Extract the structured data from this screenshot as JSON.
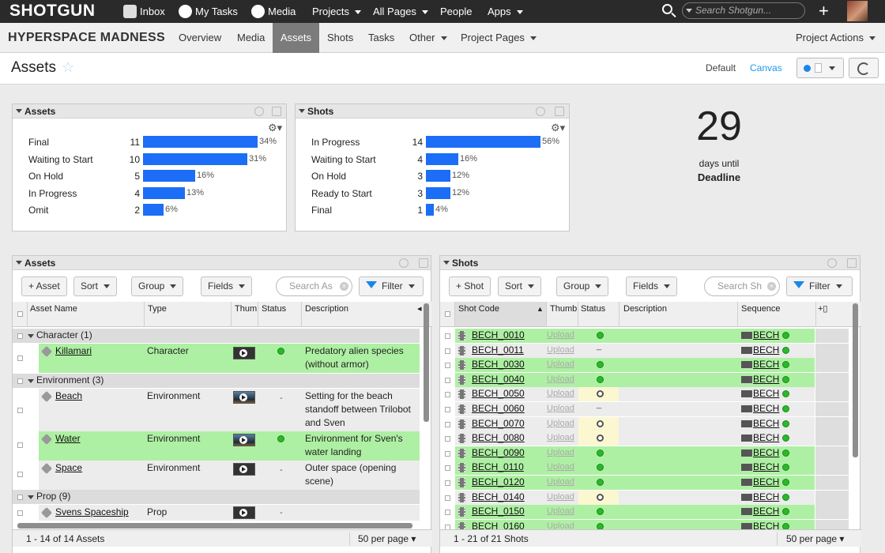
{
  "topnav": {
    "logo": "SHOTGUN",
    "items": [
      {
        "label": "Inbox",
        "icon": "inbox-icon"
      },
      {
        "label": "My Tasks",
        "icon": "check-icon"
      },
      {
        "label": "Media",
        "icon": "play-icon"
      },
      {
        "label": "Projects"
      },
      {
        "label": "All Pages"
      },
      {
        "label": "People"
      },
      {
        "label": "Apps"
      }
    ],
    "search_placeholder": "Search Shotgun..."
  },
  "projnav": {
    "title": "HYPERSPACE MADNESS",
    "tabs": [
      "Overview",
      "Media",
      "Assets",
      "Shots",
      "Tasks",
      "Other",
      "Project Pages"
    ],
    "active_tab": "Assets",
    "actions": "Project Actions"
  },
  "page": {
    "title": "Assets",
    "layout_default": "Default",
    "layout_canvas": "Canvas"
  },
  "assets_chart": {
    "title": "Assets",
    "chart_data": {
      "type": "bar",
      "categories": [
        "Final",
        "Waiting to Start",
        "On Hold",
        "In Progress",
        "Omit"
      ],
      "values": [
        11,
        10,
        5,
        4,
        2
      ],
      "percent_labels": [
        "34%",
        "31%",
        "16%",
        "13%",
        "6%"
      ]
    }
  },
  "shots_chart": {
    "title": "Shots",
    "chart_data": {
      "type": "bar",
      "categories": [
        "In Progress",
        "Waiting to Start",
        "On Hold",
        "Ready to Start",
        "Final"
      ],
      "values": [
        14,
        4,
        3,
        3,
        1
      ],
      "percent_labels": [
        "56%",
        "16%",
        "12%",
        "12%",
        "4%"
      ]
    }
  },
  "countdown": {
    "number": "29",
    "line1": "days until",
    "line2": "Deadline"
  },
  "assets_grid": {
    "title": "Assets",
    "add_label": "+ Asset",
    "sort_label": "Sort",
    "group_label": "Group",
    "fields_label": "Fields",
    "search_placeholder": "Search As",
    "filter_label": "Filter",
    "columns": [
      "Asset Name",
      "Type",
      "Thumb",
      "Status",
      "Description"
    ],
    "groups": [
      {
        "label": "Character (1)"
      },
      {
        "label": "Environment (3)"
      },
      {
        "label": "Prop (9)"
      }
    ],
    "rows": [
      {
        "name": "Killamari",
        "type": "Character",
        "desc1": "Predatory alien species",
        "desc2": "(without armor)",
        "desc3": ""
      },
      {
        "name": "Beach",
        "type": "Environment",
        "desc1": "Setting for the beach",
        "desc2": "standoff between Trilobot",
        "desc3": "and Sven"
      },
      {
        "name": "Water",
        "type": "Environment",
        "desc1": "Environment for Sven's",
        "desc2": "water landing",
        "desc3": ""
      },
      {
        "name": "Space",
        "type": "Environment",
        "desc1": "Outer space (opening",
        "desc2": "scene)",
        "desc3": ""
      },
      {
        "name": "Svens Spaceship",
        "type": "Prop",
        "desc1": "",
        "desc2": "",
        "desc3": ""
      }
    ],
    "status_dash": "-",
    "footer_count": "1 - 14 of 14 Assets",
    "per_page": "50 per page"
  },
  "shots_grid": {
    "title": "Shots",
    "add_label": "+ Shot",
    "sort_label": "Sort",
    "group_label": "Group",
    "fields_label": "Fields",
    "search_placeholder": "Search Sh",
    "filter_label": "Filter",
    "columns": [
      "Shot Code",
      "Thumb",
      "Status",
      "Description",
      "Sequence"
    ],
    "upload_label": "Upload",
    "sequence_label": "BECH",
    "rows": [
      {
        "code": "BECH_0010",
        "status": "green"
      },
      {
        "code": "BECH_0011",
        "status": "dash"
      },
      {
        "code": "BECH_0030",
        "status": "green"
      },
      {
        "code": "BECH_0040",
        "status": "green"
      },
      {
        "code": "BECH_0050",
        "status": "open"
      },
      {
        "code": "BECH_0060",
        "status": "dash"
      },
      {
        "code": "BECH_0070",
        "status": "open"
      },
      {
        "code": "BECH_0080",
        "status": "open"
      },
      {
        "code": "BECH_0090",
        "status": "green"
      },
      {
        "code": "BECH_0110",
        "status": "green"
      },
      {
        "code": "BECH_0120",
        "status": "green"
      },
      {
        "code": "BECH_0140",
        "status": "open"
      },
      {
        "code": "BECH_0150",
        "status": "green"
      },
      {
        "code": "BECH_0160",
        "status": "green"
      }
    ],
    "footer_count": "1 - 21 of 21 Shots",
    "per_page": "50 per page"
  },
  "colors": {
    "accent": "#1b6ef5",
    "row_green": "#aef0a3",
    "status_green": "#2bb82b",
    "link_blue": "#1b9ae8"
  }
}
